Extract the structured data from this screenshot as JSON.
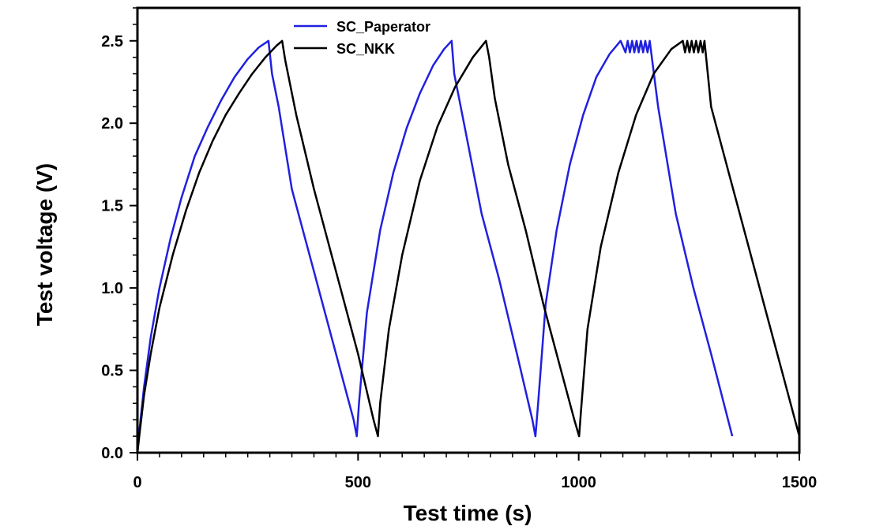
{
  "chart_data": {
    "type": "line",
    "xlabel": "Test time (s)",
    "ylabel": "Test voltage (V)",
    "xlim": [
      0,
      1500
    ],
    "ylim": [
      0,
      2.7
    ],
    "x_ticks": [
      0,
      500,
      1000,
      1500
    ],
    "x_tick_labels": [
      "0",
      "500",
      "1000",
      "1500"
    ],
    "y_ticks": [
      0.0,
      0.5,
      1.0,
      1.5,
      2.0,
      2.5
    ],
    "y_tick_labels": [
      "0.0",
      "0.5",
      "1.0",
      "1.5",
      "2.0",
      "2.5"
    ],
    "grid": false,
    "legend_position": "top",
    "series": [
      {
        "name": "SC_Paperator",
        "color": "#2020e0",
        "x": [
          0,
          5,
          15,
          30,
          50,
          75,
          100,
          130,
          160,
          190,
          220,
          250,
          275,
          297,
          305,
          320,
          350,
          400,
          450,
          490,
          497,
          502,
          520,
          550,
          580,
          610,
          640,
          670,
          695,
          712,
          718,
          740,
          780,
          820,
          860,
          895,
          902,
          908,
          925,
          950,
          980,
          1010,
          1040,
          1070,
          1095,
          1106,
          1111,
          1116,
          1121,
          1126,
          1131,
          1136,
          1141,
          1146,
          1151,
          1156,
          1161,
          1180,
          1220,
          1260,
          1300,
          1348
        ],
        "y": [
          0.0,
          0.15,
          0.4,
          0.7,
          1.0,
          1.3,
          1.55,
          1.8,
          1.98,
          2.14,
          2.28,
          2.39,
          2.46,
          2.5,
          2.3,
          2.1,
          1.6,
          1.1,
          0.6,
          0.2,
          0.1,
          0.3,
          0.85,
          1.35,
          1.7,
          1.97,
          2.18,
          2.35,
          2.45,
          2.5,
          2.3,
          2.0,
          1.45,
          1.05,
          0.6,
          0.2,
          0.1,
          0.3,
          0.9,
          1.35,
          1.75,
          2.05,
          2.28,
          2.42,
          2.5,
          2.43,
          2.5,
          2.43,
          2.5,
          2.43,
          2.5,
          2.43,
          2.5,
          2.43,
          2.5,
          2.43,
          2.5,
          2.1,
          1.45,
          1.0,
          0.6,
          0.1
        ]
      },
      {
        "name": "SC_NKK",
        "color": "#000000",
        "x": [
          0,
          5,
          15,
          30,
          50,
          80,
          110,
          140,
          170,
          200,
          230,
          260,
          290,
          315,
          328,
          335,
          360,
          400,
          450,
          500,
          535,
          545,
          550,
          570,
          600,
          640,
          680,
          720,
          760,
          790,
          797,
          810,
          840,
          880,
          920,
          960,
          990,
          1001,
          1005,
          1020,
          1050,
          1090,
          1130,
          1170,
          1210,
          1236,
          1241,
          1246,
          1251,
          1256,
          1261,
          1266,
          1271,
          1276,
          1281,
          1285,
          1300,
          1340,
          1380,
          1420,
          1460,
          1500
        ],
        "y": [
          0.0,
          0.12,
          0.35,
          0.6,
          0.88,
          1.2,
          1.47,
          1.7,
          1.89,
          2.05,
          2.18,
          2.3,
          2.4,
          2.47,
          2.5,
          2.38,
          2.05,
          1.6,
          1.1,
          0.6,
          0.2,
          0.1,
          0.3,
          0.75,
          1.2,
          1.65,
          1.98,
          2.22,
          2.4,
          2.5,
          2.4,
          2.15,
          1.75,
          1.35,
          0.9,
          0.5,
          0.2,
          0.1,
          0.25,
          0.75,
          1.25,
          1.7,
          2.05,
          2.3,
          2.45,
          2.5,
          2.43,
          2.5,
          2.43,
          2.5,
          2.43,
          2.5,
          2.43,
          2.5,
          2.43,
          2.5,
          2.1,
          1.7,
          1.3,
          0.9,
          0.5,
          0.1
        ]
      }
    ]
  }
}
